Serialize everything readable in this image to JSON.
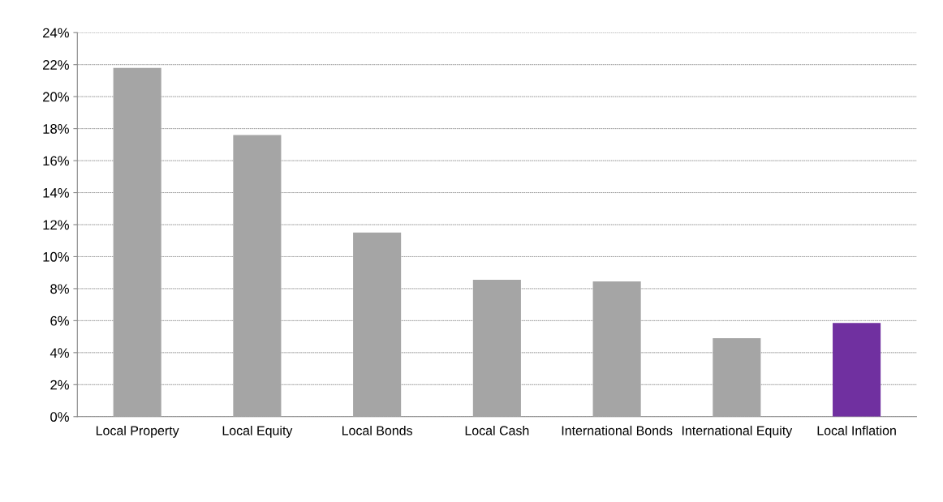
{
  "chart_data": {
    "type": "bar",
    "categories": [
      "Local Property",
      "Local Equity",
      "Local Bonds",
      "Local Cash",
      "International Bonds",
      "International Equity",
      "Local Inflation"
    ],
    "values": [
      21.8,
      17.6,
      11.5,
      8.55,
      8.45,
      4.9,
      5.85
    ],
    "colors": [
      "#a5a5a5",
      "#a5a5a5",
      "#a5a5a5",
      "#a5a5a5",
      "#a5a5a5",
      "#a5a5a5",
      "#7030a0"
    ],
    "ylim": [
      0,
      24
    ],
    "yticks": [
      {
        "value": 0,
        "label": "0%"
      },
      {
        "value": 2,
        "label": "2%"
      },
      {
        "value": 4,
        "label": "4%"
      },
      {
        "value": 6,
        "label": "6%"
      },
      {
        "value": 8,
        "label": "8%"
      },
      {
        "value": 10,
        "label": "10%"
      },
      {
        "value": 12,
        "label": "12%"
      },
      {
        "value": 14,
        "label": "14%"
      },
      {
        "value": 16,
        "label": "16%"
      },
      {
        "value": 18,
        "label": "18%"
      },
      {
        "value": 20,
        "label": "20%"
      },
      {
        "value": 22,
        "label": "22%"
      },
      {
        "value": 24,
        "label": "24%"
      }
    ],
    "grid": "y"
  }
}
